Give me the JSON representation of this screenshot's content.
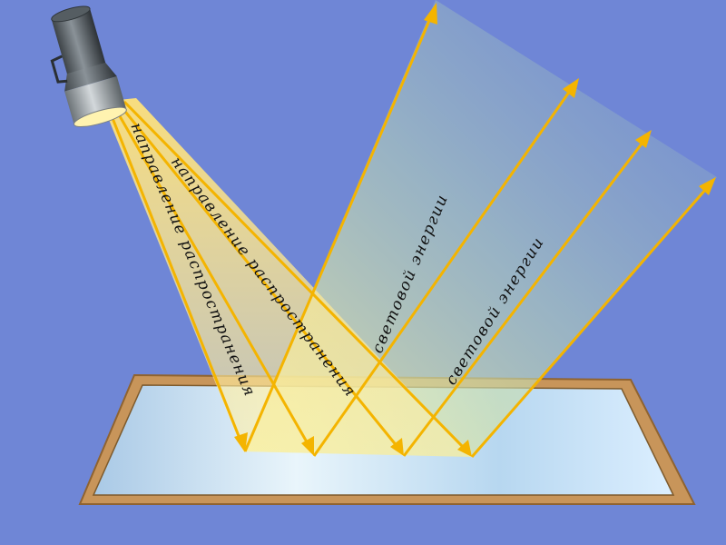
{
  "labels": {
    "propagation_1": "направление распространения",
    "propagation_2": "направление распространения",
    "energy_1": "световой энергии",
    "energy_2": "световой энергии"
  },
  "colors": {
    "background": "#6f86d6",
    "ray": "#f4b400",
    "frame": "#c8955a",
    "glass": "#c9e3f4"
  },
  "icons": {
    "flashlight": "flashlight-icon",
    "mirror": "mirror-icon"
  }
}
